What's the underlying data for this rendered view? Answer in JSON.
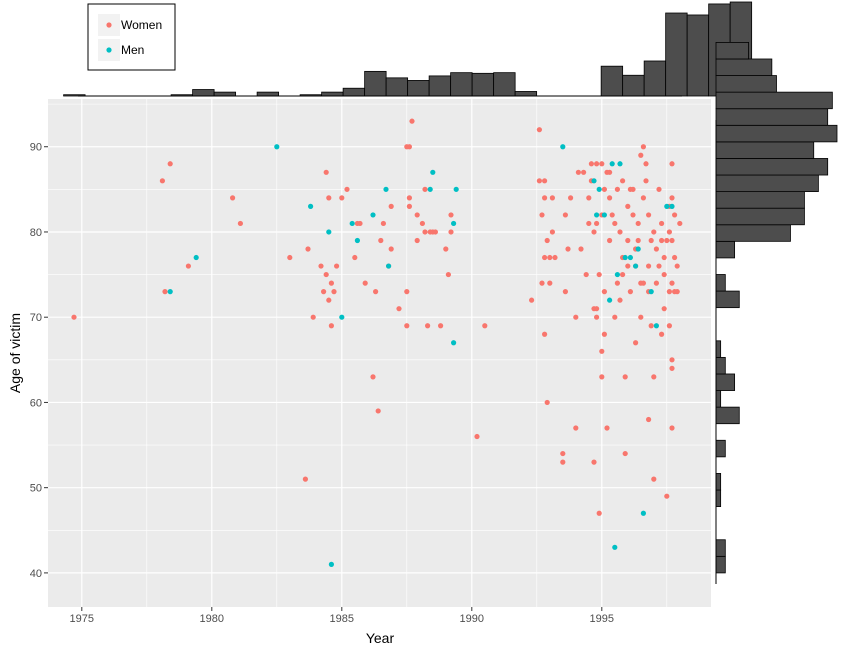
{
  "chart_data": {
    "type": "scatter",
    "title": "",
    "xlabel": "Year",
    "ylabel": "Age of victim",
    "xlim": [
      1973.7,
      1999.2
    ],
    "ylim": [
      36,
      95.6
    ],
    "x_ticks": [
      1975,
      1980,
      1985,
      1990,
      1995
    ],
    "y_ticks": [
      40,
      50,
      60,
      70,
      80,
      90
    ],
    "grid": true,
    "legend_position": "top-left",
    "marginal_histograms": true,
    "colors": {
      "Women": "#F8766D",
      "Men": "#00BFC4",
      "panel": "#EBEBEB",
      "grid": "#FFFFFF",
      "hist_fill": "#4D4D4D"
    },
    "series": [
      {
        "name": "Women",
        "points": [
          [
            1974.7,
            70
          ],
          [
            1978.1,
            86
          ],
          [
            1978.2,
            73
          ],
          [
            1978.4,
            88
          ],
          [
            1979.1,
            76
          ],
          [
            1980.8,
            84
          ],
          [
            1981.1,
            81
          ],
          [
            1983,
            77
          ],
          [
            1983.6,
            51
          ],
          [
            1983.7,
            78
          ],
          [
            1983.9,
            70
          ],
          [
            1984.2,
            76
          ],
          [
            1984.3,
            73
          ],
          [
            1984.4,
            75
          ],
          [
            1984.4,
            87
          ],
          [
            1984.5,
            72
          ],
          [
            1984.5,
            84
          ],
          [
            1984.6,
            74
          ],
          [
            1984.6,
            69
          ],
          [
            1984.7,
            73
          ],
          [
            1984.8,
            76
          ],
          [
            1985,
            84
          ],
          [
            1985.2,
            85
          ],
          [
            1985.5,
            77
          ],
          [
            1985.6,
            81
          ],
          [
            1985.7,
            81
          ],
          [
            1985.9,
            74
          ],
          [
            1986.2,
            63
          ],
          [
            1986.3,
            73
          ],
          [
            1986.4,
            59
          ],
          [
            1986.5,
            79
          ],
          [
            1986.6,
            81
          ],
          [
            1986.8,
            76
          ],
          [
            1986.9,
            78
          ],
          [
            1986.9,
            83
          ],
          [
            1987.2,
            71
          ],
          [
            1987.5,
            69
          ],
          [
            1987.5,
            73
          ],
          [
            1987.5,
            90
          ],
          [
            1987.6,
            83
          ],
          [
            1987.6,
            84
          ],
          [
            1987.6,
            90
          ],
          [
            1987.7,
            93
          ],
          [
            1987.9,
            79
          ],
          [
            1987.9,
            82
          ],
          [
            1988.1,
            81
          ],
          [
            1988.2,
            80
          ],
          [
            1988.2,
            85
          ],
          [
            1988.3,
            69
          ],
          [
            1988.4,
            80
          ],
          [
            1988.5,
            80
          ],
          [
            1988.6,
            80
          ],
          [
            1988.8,
            69
          ],
          [
            1989,
            78
          ],
          [
            1989.1,
            75
          ],
          [
            1989.2,
            80
          ],
          [
            1989.2,
            82
          ],
          [
            1990.2,
            56
          ],
          [
            1990.5,
            69
          ],
          [
            1992.3,
            72
          ],
          [
            1992.6,
            92
          ],
          [
            1992.6,
            86
          ],
          [
            1992.7,
            82
          ],
          [
            1992.7,
            74
          ],
          [
            1992.8,
            77
          ],
          [
            1992.8,
            84
          ],
          [
            1992.8,
            86
          ],
          [
            1992.8,
            68
          ],
          [
            1992.9,
            79
          ],
          [
            1992.9,
            60
          ],
          [
            1993,
            74
          ],
          [
            1993,
            77
          ],
          [
            1993.1,
            80
          ],
          [
            1993.1,
            84
          ],
          [
            1993.2,
            77
          ],
          [
            1993.5,
            54
          ],
          [
            1993.5,
            53
          ],
          [
            1993.6,
            73
          ],
          [
            1993.6,
            82
          ],
          [
            1993.7,
            78
          ],
          [
            1993.8,
            84
          ],
          [
            1994,
            70
          ],
          [
            1994,
            57
          ],
          [
            1994.1,
            87
          ],
          [
            1994.2,
            78
          ],
          [
            1994.3,
            87
          ],
          [
            1994.4,
            75
          ],
          [
            1994.5,
            84
          ],
          [
            1994.5,
            81
          ],
          [
            1994.6,
            88
          ],
          [
            1994.6,
            86
          ],
          [
            1994.7,
            71
          ],
          [
            1994.7,
            80
          ],
          [
            1994.7,
            53
          ],
          [
            1994.8,
            88
          ],
          [
            1994.8,
            81
          ],
          [
            1994.8,
            70
          ],
          [
            1994.8,
            71
          ],
          [
            1994.9,
            47
          ],
          [
            1994.9,
            75
          ],
          [
            1995,
            88
          ],
          [
            1995,
            82
          ],
          [
            1995,
            63
          ],
          [
            1995,
            66
          ],
          [
            1995.1,
            85
          ],
          [
            1995.1,
            68
          ],
          [
            1995.1,
            73
          ],
          [
            1995.2,
            87
          ],
          [
            1995.3,
            79
          ],
          [
            1995.3,
            84
          ],
          [
            1995.3,
            87
          ],
          [
            1995.4,
            82
          ],
          [
            1995.5,
            81
          ],
          [
            1995.5,
            70
          ],
          [
            1995.6,
            85
          ],
          [
            1995.6,
            74
          ],
          [
            1995.7,
            80
          ],
          [
            1995.7,
            72
          ],
          [
            1995.8,
            77
          ],
          [
            1995.8,
            86
          ],
          [
            1995.8,
            75
          ],
          [
            1995.9,
            54
          ],
          [
            1995.9,
            63
          ],
          [
            1996,
            79
          ],
          [
            1996,
            83
          ],
          [
            1996,
            76
          ],
          [
            1996.1,
            73
          ],
          [
            1996.1,
            85
          ],
          [
            1996.2,
            82
          ],
          [
            1996.2,
            85
          ],
          [
            1996.3,
            78
          ],
          [
            1996.3,
            76
          ],
          [
            1996.3,
            67
          ],
          [
            1996.4,
            79
          ],
          [
            1996.4,
            81
          ],
          [
            1996.5,
            89
          ],
          [
            1996.5,
            74
          ],
          [
            1996.5,
            70
          ],
          [
            1996.6,
            74
          ],
          [
            1996.6,
            90
          ],
          [
            1996.6,
            84
          ],
          [
            1996.7,
            88
          ],
          [
            1996.7,
            86
          ],
          [
            1996.8,
            76
          ],
          [
            1996.8,
            82
          ],
          [
            1996.8,
            73
          ],
          [
            1996.8,
            58
          ],
          [
            1996.9,
            79
          ],
          [
            1996.9,
            69
          ],
          [
            1997,
            63
          ],
          [
            1997,
            80
          ],
          [
            1997,
            51
          ],
          [
            1997.1,
            78
          ],
          [
            1997.1,
            74
          ],
          [
            1997.2,
            85
          ],
          [
            1997.2,
            76
          ],
          [
            1997.3,
            79
          ],
          [
            1997.3,
            81
          ],
          [
            1997.3,
            68
          ],
          [
            1997.4,
            77
          ],
          [
            1997.4,
            75
          ],
          [
            1997.4,
            71
          ],
          [
            1997.5,
            79
          ],
          [
            1997.5,
            49
          ],
          [
            1997.6,
            80
          ],
          [
            1997.6,
            73
          ],
          [
            1997.6,
            83
          ],
          [
            1997.6,
            69
          ],
          [
            1997.7,
            88
          ],
          [
            1997.7,
            84
          ],
          [
            1997.7,
            79
          ],
          [
            1997.7,
            57
          ],
          [
            1997.7,
            65
          ],
          [
            1997.7,
            74
          ],
          [
            1997.8,
            77
          ],
          [
            1997.8,
            82
          ],
          [
            1997.8,
            73
          ],
          [
            1997.9,
            76
          ],
          [
            1997.9,
            73
          ],
          [
            1998,
            81
          ],
          [
            1997.7,
            64
          ],
          [
            1995.2,
            57
          ]
        ]
      },
      {
        "name": "Men",
        "points": [
          [
            1978.4,
            73
          ],
          [
            1979.4,
            77
          ],
          [
            1982.5,
            90
          ],
          [
            1983.8,
            83
          ],
          [
            1984.5,
            80
          ],
          [
            1984.6,
            41
          ],
          [
            1985,
            70
          ],
          [
            1985.4,
            81
          ],
          [
            1985.6,
            79
          ],
          [
            1986.2,
            82
          ],
          [
            1986.7,
            85
          ],
          [
            1986.8,
            76
          ],
          [
            1988.4,
            85
          ],
          [
            1988.5,
            87
          ],
          [
            1989.3,
            81
          ],
          [
            1989.3,
            67
          ],
          [
            1989.4,
            85
          ],
          [
            1993.5,
            90
          ],
          [
            1994.7,
            86
          ],
          [
            1994.8,
            82
          ],
          [
            1994.9,
            85
          ],
          [
            1995.1,
            82
          ],
          [
            1995.3,
            72
          ],
          [
            1995.4,
            88
          ],
          [
            1995.5,
            43
          ],
          [
            1995.6,
            75
          ],
          [
            1995.7,
            88
          ],
          [
            1995.9,
            77
          ],
          [
            1996.1,
            77
          ],
          [
            1996.3,
            76
          ],
          [
            1996.4,
            78
          ],
          [
            1996.6,
            47
          ],
          [
            1996.9,
            73
          ],
          [
            1997.1,
            69
          ],
          [
            1997.5,
            83
          ],
          [
            1997.7,
            83
          ]
        ]
      }
    ],
    "marginal_x_histogram": {
      "bin_width": 0.827,
      "bin_start": 1974.3,
      "counts": [
        2,
        0,
        0,
        0,
        0,
        2,
        10,
        6,
        0,
        6,
        0,
        2,
        6,
        12,
        38,
        28,
        24,
        31,
        36,
        35,
        36,
        7,
        0,
        0,
        0,
        46,
        32,
        54,
        128,
        125,
        142,
        145
      ]
    },
    "marginal_y_histogram": {
      "bin_width": 1.945,
      "bin_start": 40,
      "counts": [
        2,
        2,
        0,
        0,
        1,
        1,
        0,
        2,
        0,
        5,
        1,
        4,
        2,
        1,
        0,
        0,
        5,
        2,
        0,
        4,
        16,
        19,
        19,
        22,
        24,
        21,
        26,
        24,
        25,
        13,
        12,
        7
      ]
    }
  }
}
